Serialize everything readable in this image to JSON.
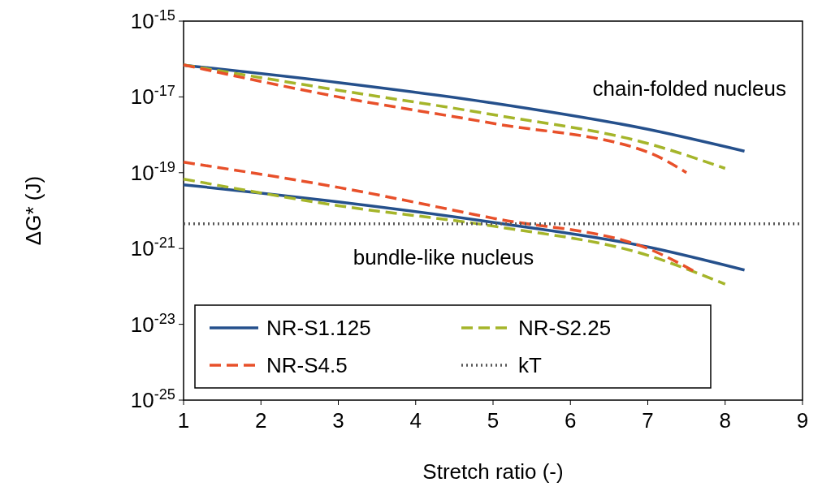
{
  "chart_data": {
    "type": "line",
    "xlabel": "Stretch ratio (-)",
    "ylabel": "ΔG* (J)",
    "log": "y",
    "grid": false,
    "legend": "bottom left",
    "xlim": [
      1,
      9
    ],
    "xticks": [
      1,
      2,
      3,
      4,
      5,
      6,
      7,
      8,
      9
    ],
    "ylim": [
      1e-25,
      1e-15
    ],
    "yticks": [
      {
        "value": 1e-25,
        "label": "10$^{-25}$"
      },
      {
        "value": 1e-23,
        "label": "10$^{-23}$"
      },
      {
        "value": 1e-21,
        "label": "10$^{-21}$"
      },
      {
        "value": 1e-19,
        "label": "10$^{-19}$"
      },
      {
        "value": 1e-17,
        "label": "10$^{-17}$"
      },
      {
        "value": 1e-15,
        "label": "10$^{-15}$"
      }
    ],
    "series": [
      {
        "name": "NR-S1.125",
        "color": "#25508c",
        "line_style": "solid",
        "x": [
          1,
          3,
          5,
          7,
          8.25,
          null,
          1,
          3,
          5,
          7,
          8.25
        ],
        "values": [
          6.9e-17,
          2.4e-17,
          6.9e-18,
          1.4e-18,
          3.7e-19,
          null,
          4.8e-20,
          1.7e-20,
          4.9e-21,
          1.1e-21,
          2.7e-22
        ]
      },
      {
        "name": "NR-S2.25",
        "color": "#a5b52a",
        "line_style": "dashed",
        "x": [
          1,
          3,
          5,
          7,
          8,
          null,
          1,
          3,
          5,
          7,
          8
        ],
        "values": [
          7e-17,
          1.5e-17,
          3.4e-18,
          5.9e-19,
          1.3e-19,
          null,
          6.8e-20,
          1.35e-20,
          3.9e-21,
          6.6e-22,
          1.15e-22
        ]
      },
      {
        "name": "NR-S4.5",
        "color": "#e8502a",
        "line_style": "dashed",
        "x": [
          1,
          3,
          5,
          7,
          7.5,
          null,
          1,
          3,
          5,
          7,
          7.6
        ],
        "values": [
          7e-17,
          1e-17,
          2e-18,
          3.5e-19,
          1e-19,
          null,
          1.9e-19,
          4.1e-20,
          6.3e-21,
          1e-21,
          2.5e-22
        ]
      },
      {
        "name": "kT",
        "color": "#595959",
        "line_style": "dotted",
        "x": [
          1,
          9
        ],
        "values": [
          4.5e-21,
          4.5e-21
        ]
      }
    ],
    "annotations": [
      "chain-folded nucleus",
      "bundle-like nucleus"
    ]
  }
}
